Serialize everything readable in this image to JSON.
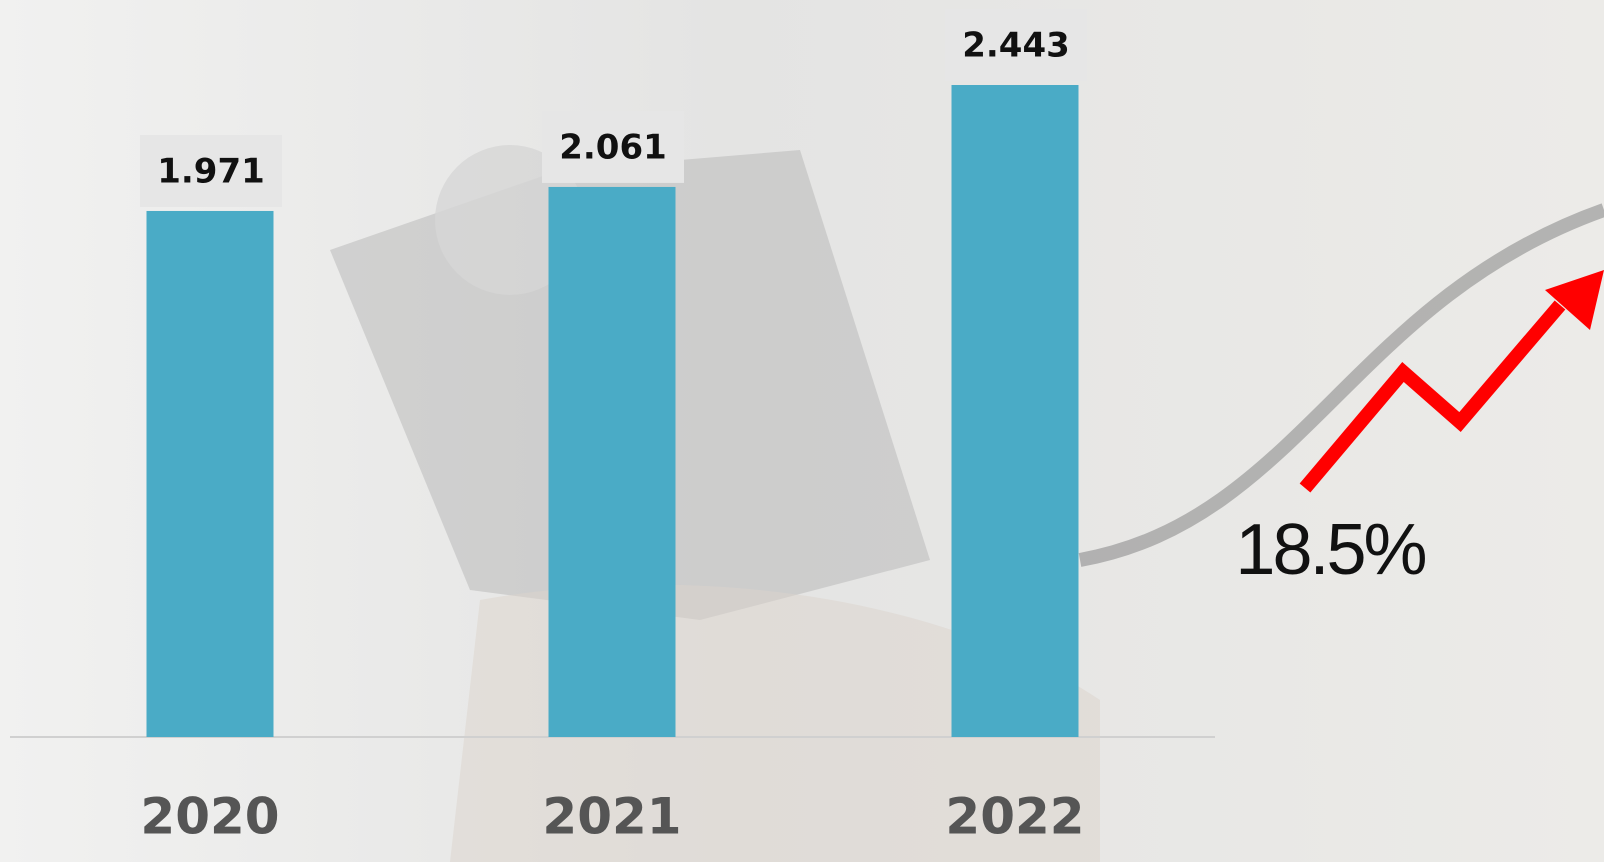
{
  "chart_data": {
    "type": "bar",
    "categories": [
      "2020",
      "2021",
      "2022"
    ],
    "values": [
      1.971,
      2.061,
      2.443
    ],
    "color": "#4aabc6",
    "annotation": "18.5%"
  }
}
